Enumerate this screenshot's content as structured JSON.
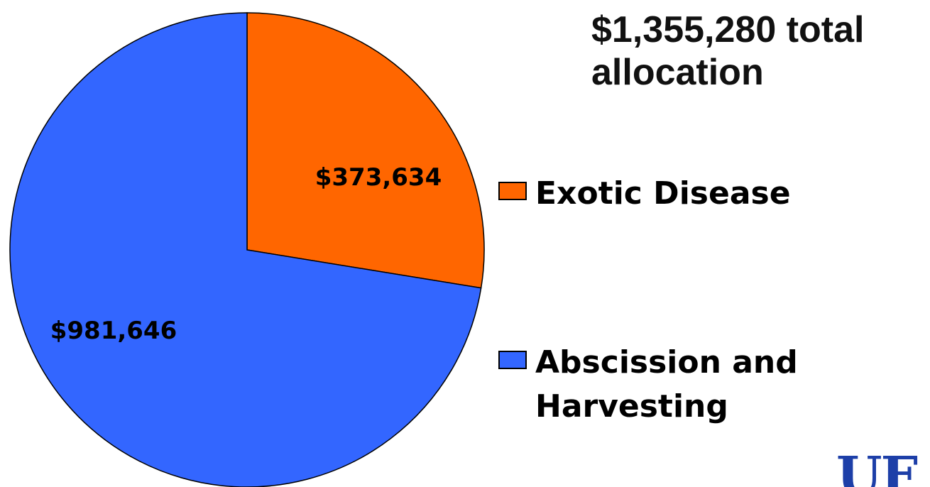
{
  "title": "$1,355,280 total allocation",
  "chart_data": {
    "type": "pie",
    "total": 1355280,
    "slices": [
      {
        "name": "Exotic Disease",
        "value": 373634,
        "label": "$373,634",
        "color": "#ff6600"
      },
      {
        "name": "Abscission and Harvesting",
        "value": 981646,
        "label": "$981,646",
        "color": "#3366ff"
      }
    ],
    "start": "12 o'clock",
    "direction": "clockwise",
    "legend_position": "right"
  },
  "legend": {
    "items": [
      {
        "label": "Exotic Disease",
        "color": "#ff6600"
      },
      {
        "label": "Abscission and Harvesting",
        "color": "#3366ff"
      }
    ]
  },
  "logo": {
    "text": "UF",
    "color": "#1d3fa8"
  }
}
